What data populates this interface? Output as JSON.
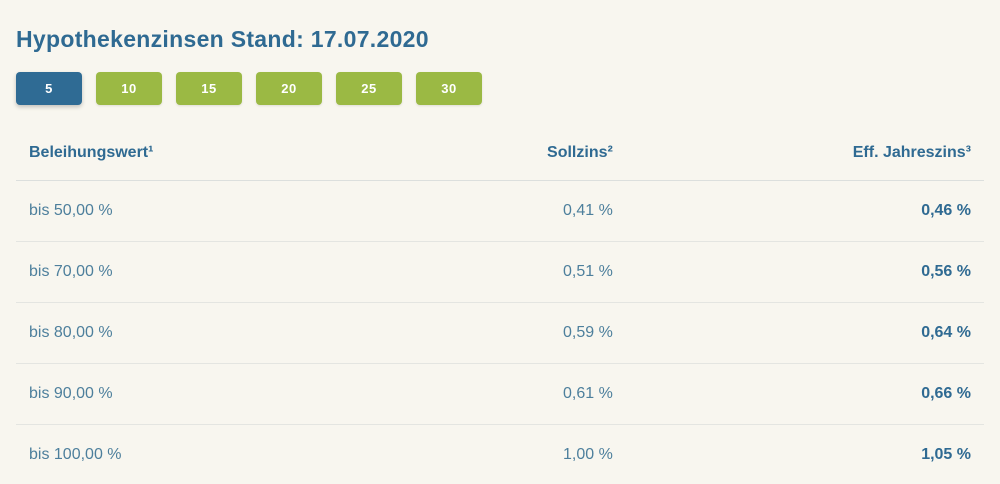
{
  "header": {
    "title": "Hypothekenzinsen Stand: 17.07.2020"
  },
  "tabs": {
    "items": [
      {
        "label": "5",
        "selected": true
      },
      {
        "label": "10",
        "selected": false
      },
      {
        "label": "15",
        "selected": false
      },
      {
        "label": "20",
        "selected": false
      },
      {
        "label": "25",
        "selected": false
      },
      {
        "label": "30",
        "selected": false
      }
    ]
  },
  "table": {
    "columns": [
      {
        "label": "Beleihungswert¹"
      },
      {
        "label": "Sollzins²"
      },
      {
        "label": "Eff. Jahreszins³"
      }
    ],
    "rows": [
      {
        "beleihungswert": "bis 50,00 %",
        "sollzins": "0,41 %",
        "eff_jahreszins": "0,46 %"
      },
      {
        "beleihungswert": "bis 70,00 %",
        "sollzins": "0,51 %",
        "eff_jahreszins": "0,56 %"
      },
      {
        "beleihungswert": "bis 80,00 %",
        "sollzins": "0,59 %",
        "eff_jahreszins": "0,64 %"
      },
      {
        "beleihungswert": "bis 90,00 %",
        "sollzins": "0,61 %",
        "eff_jahreszins": "0,66 %"
      },
      {
        "beleihungswert": "bis 100,00 %",
        "sollzins": "1,00 %",
        "eff_jahreszins": "1,05 %"
      }
    ]
  },
  "colors": {
    "background": "#f8f6ef",
    "accent_blue": "#2f6b94",
    "accent_green": "#9bb944",
    "heading_text": "#2f6a92",
    "body_text": "#4d7f9c",
    "divider": "#e4e5e1"
  }
}
